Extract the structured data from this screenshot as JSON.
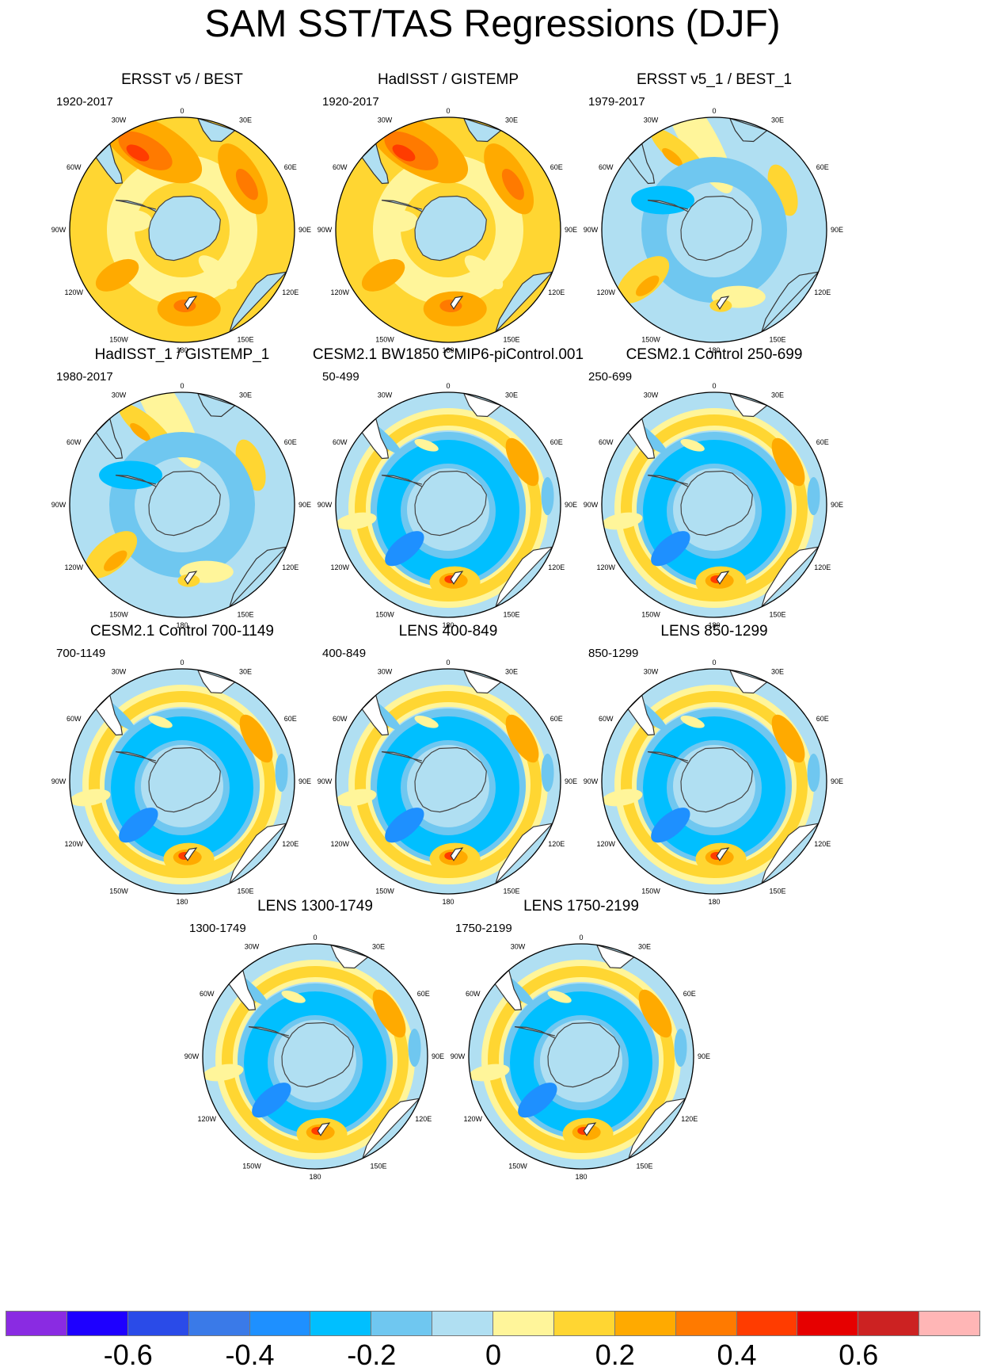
{
  "figure": {
    "title": "SAM SST/TAS Regressions (DJF)"
  },
  "panels": [
    {
      "title": "ERSST v5 / BEST",
      "period": "1920-2017",
      "pattern": "warm-obs"
    },
    {
      "title": "HadISST / GISTEMP",
      "period": "1920-2017",
      "pattern": "warm-obs"
    },
    {
      "title": "ERSST v5_1 / BEST_1",
      "period": "1979-2017",
      "pattern": "mixed-obs"
    },
    {
      "title": "HadISST_1 / GISTEMP_1",
      "period": "1980-2017",
      "pattern": "mixed-obs"
    },
    {
      "title": "CESM2.1 BW1850 CMIP6-piControl.001",
      "period": "50-499",
      "pattern": "model"
    },
    {
      "title": "CESM2.1 Control 250-699",
      "period": "250-699",
      "pattern": "model"
    },
    {
      "title": "CESM2.1 Control 700-1149",
      "period": "700-1149",
      "pattern": "model"
    },
    {
      "title": "LENS 400-849",
      "period": "400-849",
      "pattern": "model"
    },
    {
      "title": "LENS 850-1299",
      "period": "850-1299",
      "pattern": "model"
    },
    {
      "title": "LENS 1300-1749",
      "period": "1300-1749",
      "pattern": "model"
    },
    {
      "title": "LENS 1750-2199",
      "period": "1750-2199",
      "pattern": "model"
    }
  ],
  "map_labels": {
    "lon_0": "0",
    "lon_30e": "30E",
    "lon_60e": "60E",
    "lon_90e": "90E",
    "lon_120e": "120E",
    "lon_150e": "150E",
    "lon_180": "180",
    "lon_150w": "150W",
    "lon_120w": "120W",
    "lon_90w": "90W",
    "lon_60w": "60W",
    "lon_30w": "30W"
  },
  "colorbar": {
    "colors": [
      "#8a2be2",
      "#1e00ff",
      "#2a4be8",
      "#3a7ae8",
      "#1e90ff",
      "#00bfff",
      "#6fc7f0",
      "#b0dff2",
      "#fff59a",
      "#ffd632",
      "#ffaa00",
      "#ff7a00",
      "#ff3c00",
      "#e60000",
      "#cc2222",
      "#ffb6b6"
    ],
    "ticks": [
      "-0.6",
      "-0.4",
      "-0.2",
      "0",
      "0.2",
      "0.4",
      "0.6"
    ],
    "tick_values": [
      -0.6,
      -0.4,
      -0.2,
      0,
      0.2,
      0.4,
      0.6
    ]
  }
}
